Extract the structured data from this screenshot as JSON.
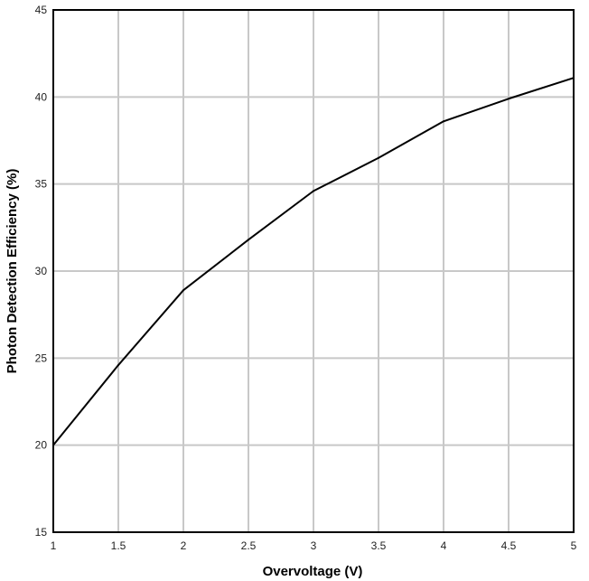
{
  "chart_data": {
    "type": "line",
    "title": "",
    "xlabel": "Overvoltage (V)",
    "ylabel": "Photon Detection Efficiency (%)",
    "xlim": [
      1,
      5
    ],
    "ylim": [
      15,
      45
    ],
    "x_ticks": [
      1,
      1.5,
      2,
      2.5,
      3,
      3.5,
      4,
      4.5,
      5
    ],
    "x_tick_labels": [
      "1",
      "1.5",
      "2",
      "2.5",
      "3",
      "3.5",
      "4",
      "4.5",
      "5"
    ],
    "y_ticks": [
      15,
      20,
      25,
      30,
      35,
      40,
      45
    ],
    "y_tick_labels": [
      "15",
      "20",
      "25",
      "30",
      "35",
      "40",
      "45"
    ],
    "grid": true,
    "legend": "none",
    "series": [
      {
        "x": [
          1,
          1.5,
          2,
          2.5,
          3,
          3.5,
          4,
          4.5,
          5
        ],
        "values": [
          20.0,
          24.6,
          28.9,
          31.8,
          34.6,
          36.5,
          38.6,
          39.9,
          41.1
        ]
      }
    ],
    "colors": {
      "line": "#000000",
      "grid": "#c8c8c8",
      "frame": "#000000"
    }
  }
}
